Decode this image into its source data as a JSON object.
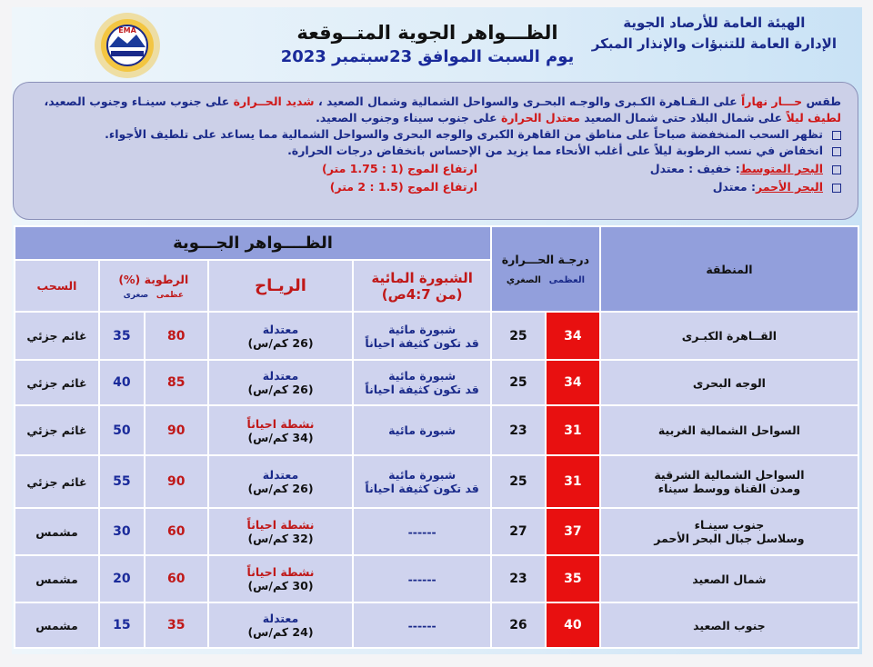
{
  "header": {
    "org_line1": "الهيئة العامة للأرصاد الجوية",
    "org_line2": "الإدارة العامة للتنبؤات والإنذار المبكر",
    "title": "الظـــواهر الجوية المتــوقعة",
    "date": "يوم السبت الموافق 23سبتمبر 2023",
    "logo_text": "EMA"
  },
  "summary": {
    "p1_a": "طقس",
    "p1_b": "حـــار نهاراً",
    "p1_c": "على الـقـاهرة الكـبرى والوجـه البحـرى والسواحل الشمالية وشمال الصعيد ،",
    "p1_d": "شديد الحــرارة",
    "p1_e": "على جنوب سينـاء وجنوب الصعيد،",
    "p2_a": "لطيف ليلاً",
    "p2_b": "على شمال البلاد حتى شمال الصعيد",
    "p2_c": "معتدل الحرارة",
    "p2_d": "على جنوب سيناء وجنوب الصعيد.",
    "b1": "تظهر السحب المنخفضة صباحاً على مناطق من القاهرة الكبرى والوجه البحرى والسواحل الشمالية مما يساعد على تلطيف الأجواء.",
    "b2": "انخفاض في نسب الرطوبة ليلاً على أغلب الأنحاء مما يزيد من الإحساس بانخفاض درجات الحرارة.",
    "seas": [
      {
        "name": "البحر المتوسط",
        "state": ": خفيف : معتدل",
        "wave": "ارتفاع الموج (1 : 1.75 متر)"
      },
      {
        "name": "البحر الأحمر",
        "state": ": معتدل",
        "wave": "ارتفاع الموج (1.5 : 2 متر)"
      }
    ]
  },
  "table": {
    "h_region": "المنطقة",
    "h_temp": "درجـة الحـــرارة",
    "h_max": "العظمى",
    "h_min": "الصغري",
    "h_phen": "الظــــواهر الجـــوية",
    "h_fog": "الشبورة المائية",
    "h_fog_time": "(من 4:7ص)",
    "h_wind": "الريـاح",
    "h_hum": "الرطوبة (%)",
    "h_hum_max": "عظمى",
    "h_hum_min": "صغرى",
    "h_cloud": "السحب",
    "rows": [
      {
        "region": "القــاهرة الكبـرى",
        "region2": "",
        "tmax": "34",
        "tmin": "25",
        "fog": "شبورة مائية",
        "fog2": "قد تكون كثيفة احياناً",
        "wind": "معتدلة",
        "wind_speed": "(26 كم/س)",
        "wind_red": false,
        "hmax": "80",
        "hmin": "35",
        "cloud": "غائم جزئي"
      },
      {
        "region": "الوجه البحرى",
        "region2": "",
        "tmax": "34",
        "tmin": "25",
        "fog": "شبورة مائية",
        "fog2": "قد تكون كثيفة احياناً",
        "wind": "معتدلة",
        "wind_speed": "(26 كم/س)",
        "wind_red": false,
        "hmax": "85",
        "hmin": "40",
        "cloud": "غائم جزئي"
      },
      {
        "region": "السواحل الشمالية الغربية",
        "region2": "",
        "tmax": "31",
        "tmin": "23",
        "fog": "شبورة مائية",
        "fog2": "",
        "wind": "نشطة احياناً",
        "wind_speed": "(34 كم/س)",
        "wind_red": true,
        "hmax": "90",
        "hmin": "50",
        "cloud": "غائم جزئي"
      },
      {
        "region": "السواحل الشمالية الشرقية",
        "region2": "ومدن القناة ووسط سيناء",
        "tmax": "31",
        "tmin": "25",
        "fog": "شبورة مائية",
        "fog2": "قد تكون كثيفة احياناً",
        "wind": "معتدلة",
        "wind_speed": "(26 كم/س)",
        "wind_red": false,
        "hmax": "90",
        "hmin": "55",
        "cloud": "غائم جزئي"
      },
      {
        "region": "جنوب سينـاء",
        "region2": "وسلاسل جبال البحر الأحمر",
        "tmax": "37",
        "tmin": "27",
        "fog": "------",
        "fog2": "",
        "wind": "نشطة احياناً",
        "wind_speed": "(32 كم/س)",
        "wind_red": true,
        "hmax": "60",
        "hmin": "30",
        "cloud": "مشمس"
      },
      {
        "region": "شمال الصعيد",
        "region2": "",
        "tmax": "35",
        "tmin": "23",
        "fog": "------",
        "fog2": "",
        "wind": "نشطة احياناً",
        "wind_speed": "(30 كم/س)",
        "wind_red": true,
        "hmax": "60",
        "hmin": "20",
        "cloud": "مشمس"
      },
      {
        "region": "جنوب الصعيد",
        "region2": "",
        "tmax": "40",
        "tmin": "26",
        "fog": "------",
        "fog2": "",
        "wind": "معتدلة",
        "wind_speed": "(24 كم/س)",
        "wind_red": false,
        "hmax": "35",
        "hmin": "15",
        "cloud": "مشمس"
      }
    ]
  },
  "colors": {
    "accent_red": "#e81010",
    "navy": "#1a2a8a",
    "header_blue": "#929fdc",
    "cell": "#cfd3ee"
  }
}
